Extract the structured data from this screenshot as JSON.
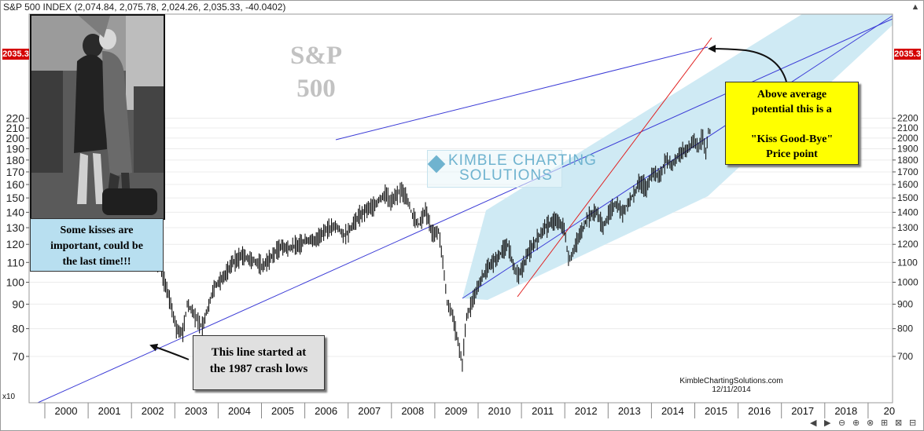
{
  "header": {
    "text": "S&P 500 INDEX (2,074.84, 2,075.78, 2,024.26, 2,035.33, -40.0402)"
  },
  "title": {
    "line1": "S&P",
    "line2": "500"
  },
  "watermark": {
    "line1": "KIMBLE CHARTING",
    "line2": "SOLUTIONS"
  },
  "price_tag": "2035.3",
  "multiplier_label": "x10",
  "notes": {
    "kisses": [
      "Some kisses are",
      "important, could be",
      "the last time!!!"
    ],
    "crash": [
      "This line started at",
      "the 1987 crash lows"
    ],
    "kiss_goodbye": [
      "Above average",
      "potential this is a",
      "",
      "\"Kiss Good-Bye\"",
      "Price point"
    ]
  },
  "credit": {
    "site": "KimbleChartingSolutions.com",
    "date": "12/11/2014"
  },
  "colors": {
    "trend_line": "#3b3bd6",
    "red_trend": "#e02020",
    "channel_fill": "#cfeaf4",
    "note_blue": "#b8dff0",
    "note_yellow": "#ffff00",
    "note_grey": "#e0e0e0"
  },
  "icons": [
    "chevron-up-icon",
    "chevron-left-icon",
    "chevron-right-icon",
    "zoom-out-icon",
    "zoom-in-icon",
    "zoom-reset-icon",
    "settings-icon"
  ],
  "chart_data": {
    "type": "line",
    "title": "S&P 500",
    "xlabel": "",
    "ylabel": "",
    "x_ticks": [
      "2000",
      "2001",
      "2002",
      "2003",
      "2004",
      "2005",
      "2006",
      "2007",
      "2008",
      "2009",
      "2010",
      "2011",
      "2012",
      "2013",
      "2014",
      "2015",
      "2016",
      "2017",
      "2018",
      "20"
    ],
    "y_ticks_left": [
      "70",
      "80",
      "90",
      "100",
      "110",
      "120",
      "130",
      "140",
      "150",
      "160",
      "170",
      "180",
      "190",
      "200",
      "210",
      "220"
    ],
    "y_ticks_right": [
      "700",
      "800",
      "900",
      "1000",
      "1100",
      "1200",
      "1300",
      "1400",
      "1500",
      "1600",
      "1700",
      "1800",
      "1900",
      "2000",
      "2100",
      "2200"
    ],
    "y_scale": "log",
    "ylim": [
      630,
      2300
    ],
    "series": [
      {
        "values": [
          [
            2002.0,
            1150
          ],
          [
            2002.2,
            1080
          ],
          [
            2002.35,
            990
          ],
          [
            2002.5,
            880
          ],
          [
            2002.6,
            800
          ],
          [
            2002.75,
            780
          ],
          [
            2002.85,
            900
          ],
          [
            2003.0,
            860
          ],
          [
            2003.1,
            830
          ],
          [
            2003.2,
            810
          ],
          [
            2003.35,
            900
          ],
          [
            2003.5,
            990
          ],
          [
            2003.7,
            1020
          ],
          [
            2003.9,
            1100
          ],
          [
            2004.1,
            1140
          ],
          [
            2004.3,
            1120
          ],
          [
            2004.45,
            1100
          ],
          [
            2004.6,
            1080
          ],
          [
            2004.8,
            1130
          ],
          [
            2005.0,
            1190
          ],
          [
            2005.2,
            1180
          ],
          [
            2005.4,
            1195
          ],
          [
            2005.6,
            1230
          ],
          [
            2005.8,
            1220
          ],
          [
            2006.0,
            1280
          ],
          [
            2006.3,
            1310
          ],
          [
            2006.45,
            1250
          ],
          [
            2006.6,
            1290
          ],
          [
            2006.8,
            1370
          ],
          [
            2007.0,
            1420
          ],
          [
            2007.15,
            1440
          ],
          [
            2007.3,
            1500
          ],
          [
            2007.45,
            1530
          ],
          [
            2007.55,
            1470
          ],
          [
            2007.7,
            1520
          ],
          [
            2007.8,
            1565
          ],
          [
            2007.95,
            1470
          ],
          [
            2008.05,
            1380
          ],
          [
            2008.2,
            1320
          ],
          [
            2008.35,
            1420
          ],
          [
            2008.5,
            1260
          ],
          [
            2008.65,
            1280
          ],
          [
            2008.75,
            1100
          ],
          [
            2008.85,
            900
          ],
          [
            2008.95,
            870
          ],
          [
            2009.1,
            750
          ],
          [
            2009.2,
            676
          ],
          [
            2009.3,
            850
          ],
          [
            2009.45,
            920
          ],
          [
            2009.6,
            1000
          ],
          [
            2009.8,
            1080
          ],
          [
            2010.0,
            1120
          ],
          [
            2010.25,
            1200
          ],
          [
            2010.4,
            1070
          ],
          [
            2010.5,
            1030
          ],
          [
            2010.7,
            1140
          ],
          [
            2010.9,
            1220
          ],
          [
            2011.1,
            1300
          ],
          [
            2011.35,
            1350
          ],
          [
            2011.55,
            1300
          ],
          [
            2011.65,
            1120
          ],
          [
            2011.75,
            1150
          ],
          [
            2011.9,
            1250
          ],
          [
            2012.1,
            1370
          ],
          [
            2012.3,
            1400
          ],
          [
            2012.45,
            1300
          ],
          [
            2012.6,
            1400
          ],
          [
            2012.75,
            1460
          ],
          [
            2012.9,
            1400
          ],
          [
            2013.1,
            1500
          ],
          [
            2013.3,
            1620
          ],
          [
            2013.45,
            1580
          ],
          [
            2013.6,
            1700
          ],
          [
            2013.75,
            1660
          ],
          [
            2013.9,
            1800
          ],
          [
            2014.05,
            1760
          ],
          [
            2014.2,
            1850
          ],
          [
            2014.4,
            1900
          ],
          [
            2014.55,
            1980
          ],
          [
            2014.65,
            1920
          ],
          [
            2014.75,
            2010
          ],
          [
            2014.82,
            1860
          ],
          [
            2014.88,
            2070
          ],
          [
            2014.95,
            2035
          ]
        ]
      }
    ]
  }
}
